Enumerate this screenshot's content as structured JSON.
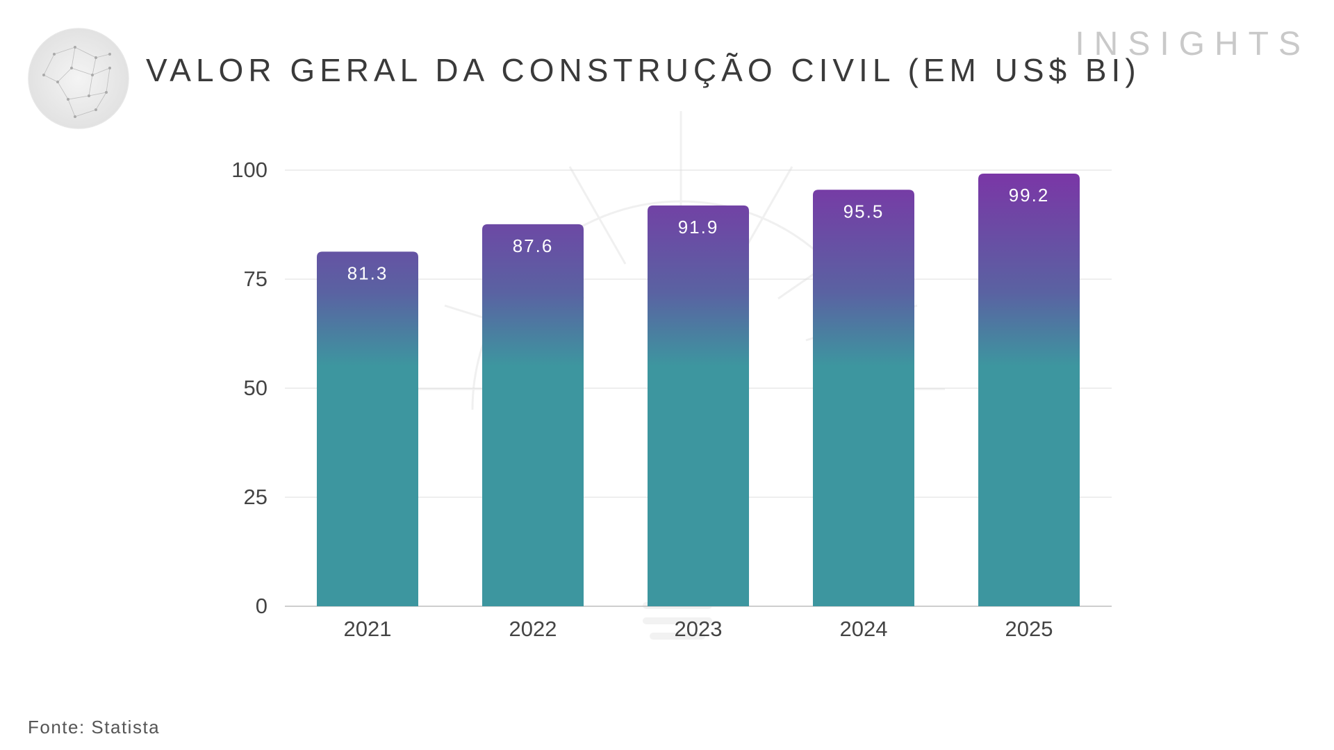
{
  "header": {
    "title": "VALOR GERAL DA CONSTRUÇÃO CIVIL (EM US$ BI)",
    "brand": "INSIGHTS"
  },
  "footer": {
    "source": "Fonte: Statista"
  },
  "colors": {
    "bar_top": "#7b35a6",
    "bar_bottom": "#3d969f",
    "grid": "#dcdcdc",
    "axis_text": "#444444",
    "label_text": "#ffffff"
  },
  "icons": {
    "globe": "globe-network-icon",
    "watermark": "sunburst-watermark-icon"
  },
  "chart_data": {
    "type": "bar",
    "categories": [
      "2021",
      "2022",
      "2023",
      "2024",
      "2025"
    ],
    "values": [
      81.3,
      87.6,
      91.9,
      95.5,
      99.2
    ],
    "value_labels": [
      "81.3",
      "87.6",
      "91.9",
      "95.5",
      "99.2"
    ],
    "y_ticks": [
      "0",
      "25",
      "50",
      "75",
      "100"
    ],
    "ylim": [
      0,
      100
    ],
    "grid": true,
    "legend": false
  }
}
